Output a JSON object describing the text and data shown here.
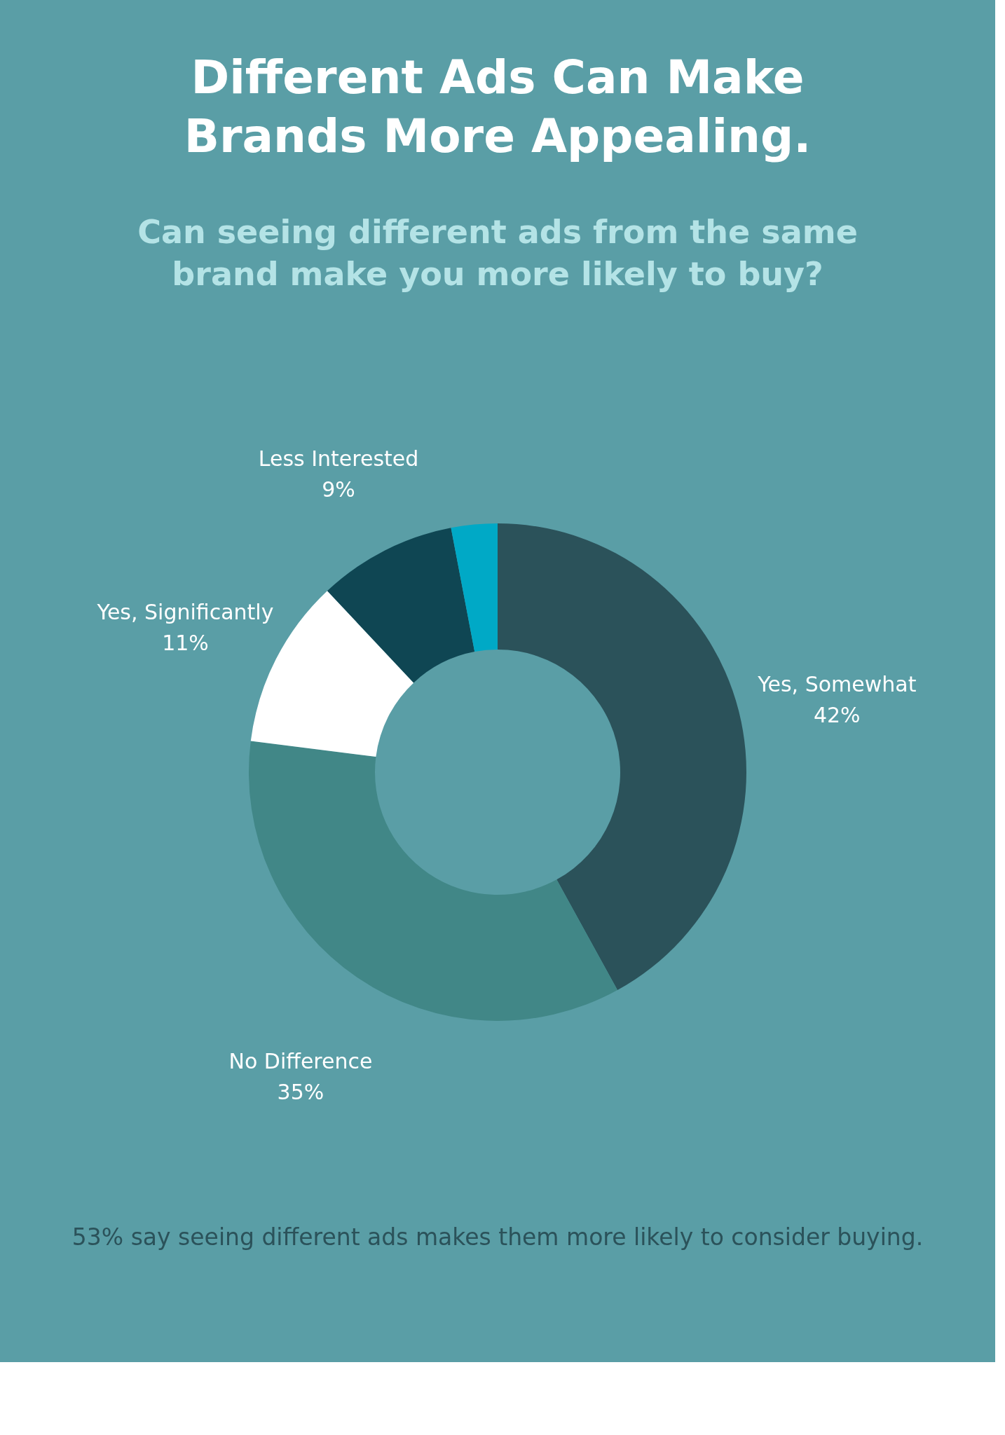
{
  "chart_data": {
    "type": "donut",
    "title": "Different Ads Can Make Brands More Appealing.",
    "subtitle": "Can seeing different ads from the same brand make you more likely to buy?",
    "categories": [
      "Yes, Somewhat",
      "No Difference",
      "Yes, Significantly",
      "Less Interested",
      null
    ],
    "values": [
      42,
      35,
      11,
      9,
      3
    ],
    "value_labels": [
      "42%",
      "35%",
      "11%",
      "9%",
      null
    ],
    "colors": [
      "#2b525a",
      "#418787",
      "#ffffff",
      "#0f4653",
      "#00a9c6"
    ],
    "annotations": [
      "53% say seeing different ads makes them more likely to consider buying."
    ],
    "legend": false
  }
}
